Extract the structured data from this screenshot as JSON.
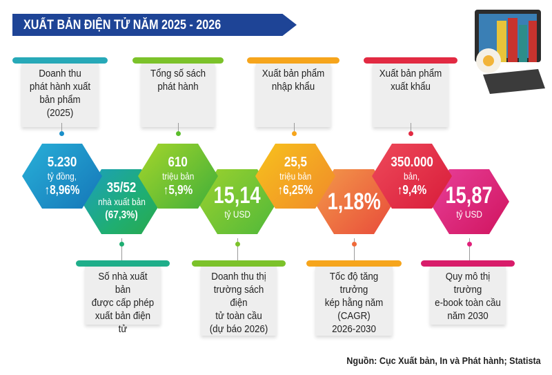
{
  "title": "XUẤT BẢN ĐIỆN TỬ NĂM 2025 - 2026",
  "colors": {
    "header": "#1e4496",
    "blue": "#1a8fc9",
    "teal": "#1fae72",
    "green": "#7cc22a",
    "green2": "#4fb83a",
    "yellow": "#f6a51c",
    "orange": "#ef6a3a",
    "red": "#e22a42",
    "pink": "#e0207a"
  },
  "top_labels": [
    "Doanh thu\nphát hành xuất\nbản phẩm (2025)",
    "Tổng số sách\nphát hành",
    "Xuất bản phẩm\nnhập khẩu",
    "Xuất bản phẩm\nxuất khẩu"
  ],
  "bottom_labels": [
    "Số nhà xuất bản\nđược cấp phép\nxuất bản điện tử",
    "Doanh thu thị\ntrường sách điện\ntử toàn cầu\n(dự báo 2026)",
    "Tốc độ tăng trưởng\nkép hằng năm\n(CAGR)\n2026-2030",
    "Quy mô thị trường\ne-book toàn cầu\nnăm 2030"
  ],
  "hex": {
    "h1": {
      "value": "5.230",
      "unit": "tỷ đồng,",
      "change": "↑8,96%"
    },
    "h2": {
      "value": "35/52",
      "unit": "nhà xuất bản",
      "extra": "(67,3%)"
    },
    "h3": {
      "value": "610",
      "unit": "triệu bản",
      "change": "↑5,9%"
    },
    "h4": {
      "value": "15,14",
      "unit": "tỷ USD"
    },
    "h5": {
      "value": "25,5",
      "unit": "triệu bản",
      "change": "↑6,25%"
    },
    "h6": {
      "value": "1,18%"
    },
    "h7": {
      "value": "350.000",
      "unit": "bản,",
      "change": "↑9,4%"
    },
    "h8": {
      "value": "15,87",
      "unit": "tỷ USD"
    }
  },
  "source": "Nguồn: Cục Xuất bản, In và Phát hành; Statista"
}
